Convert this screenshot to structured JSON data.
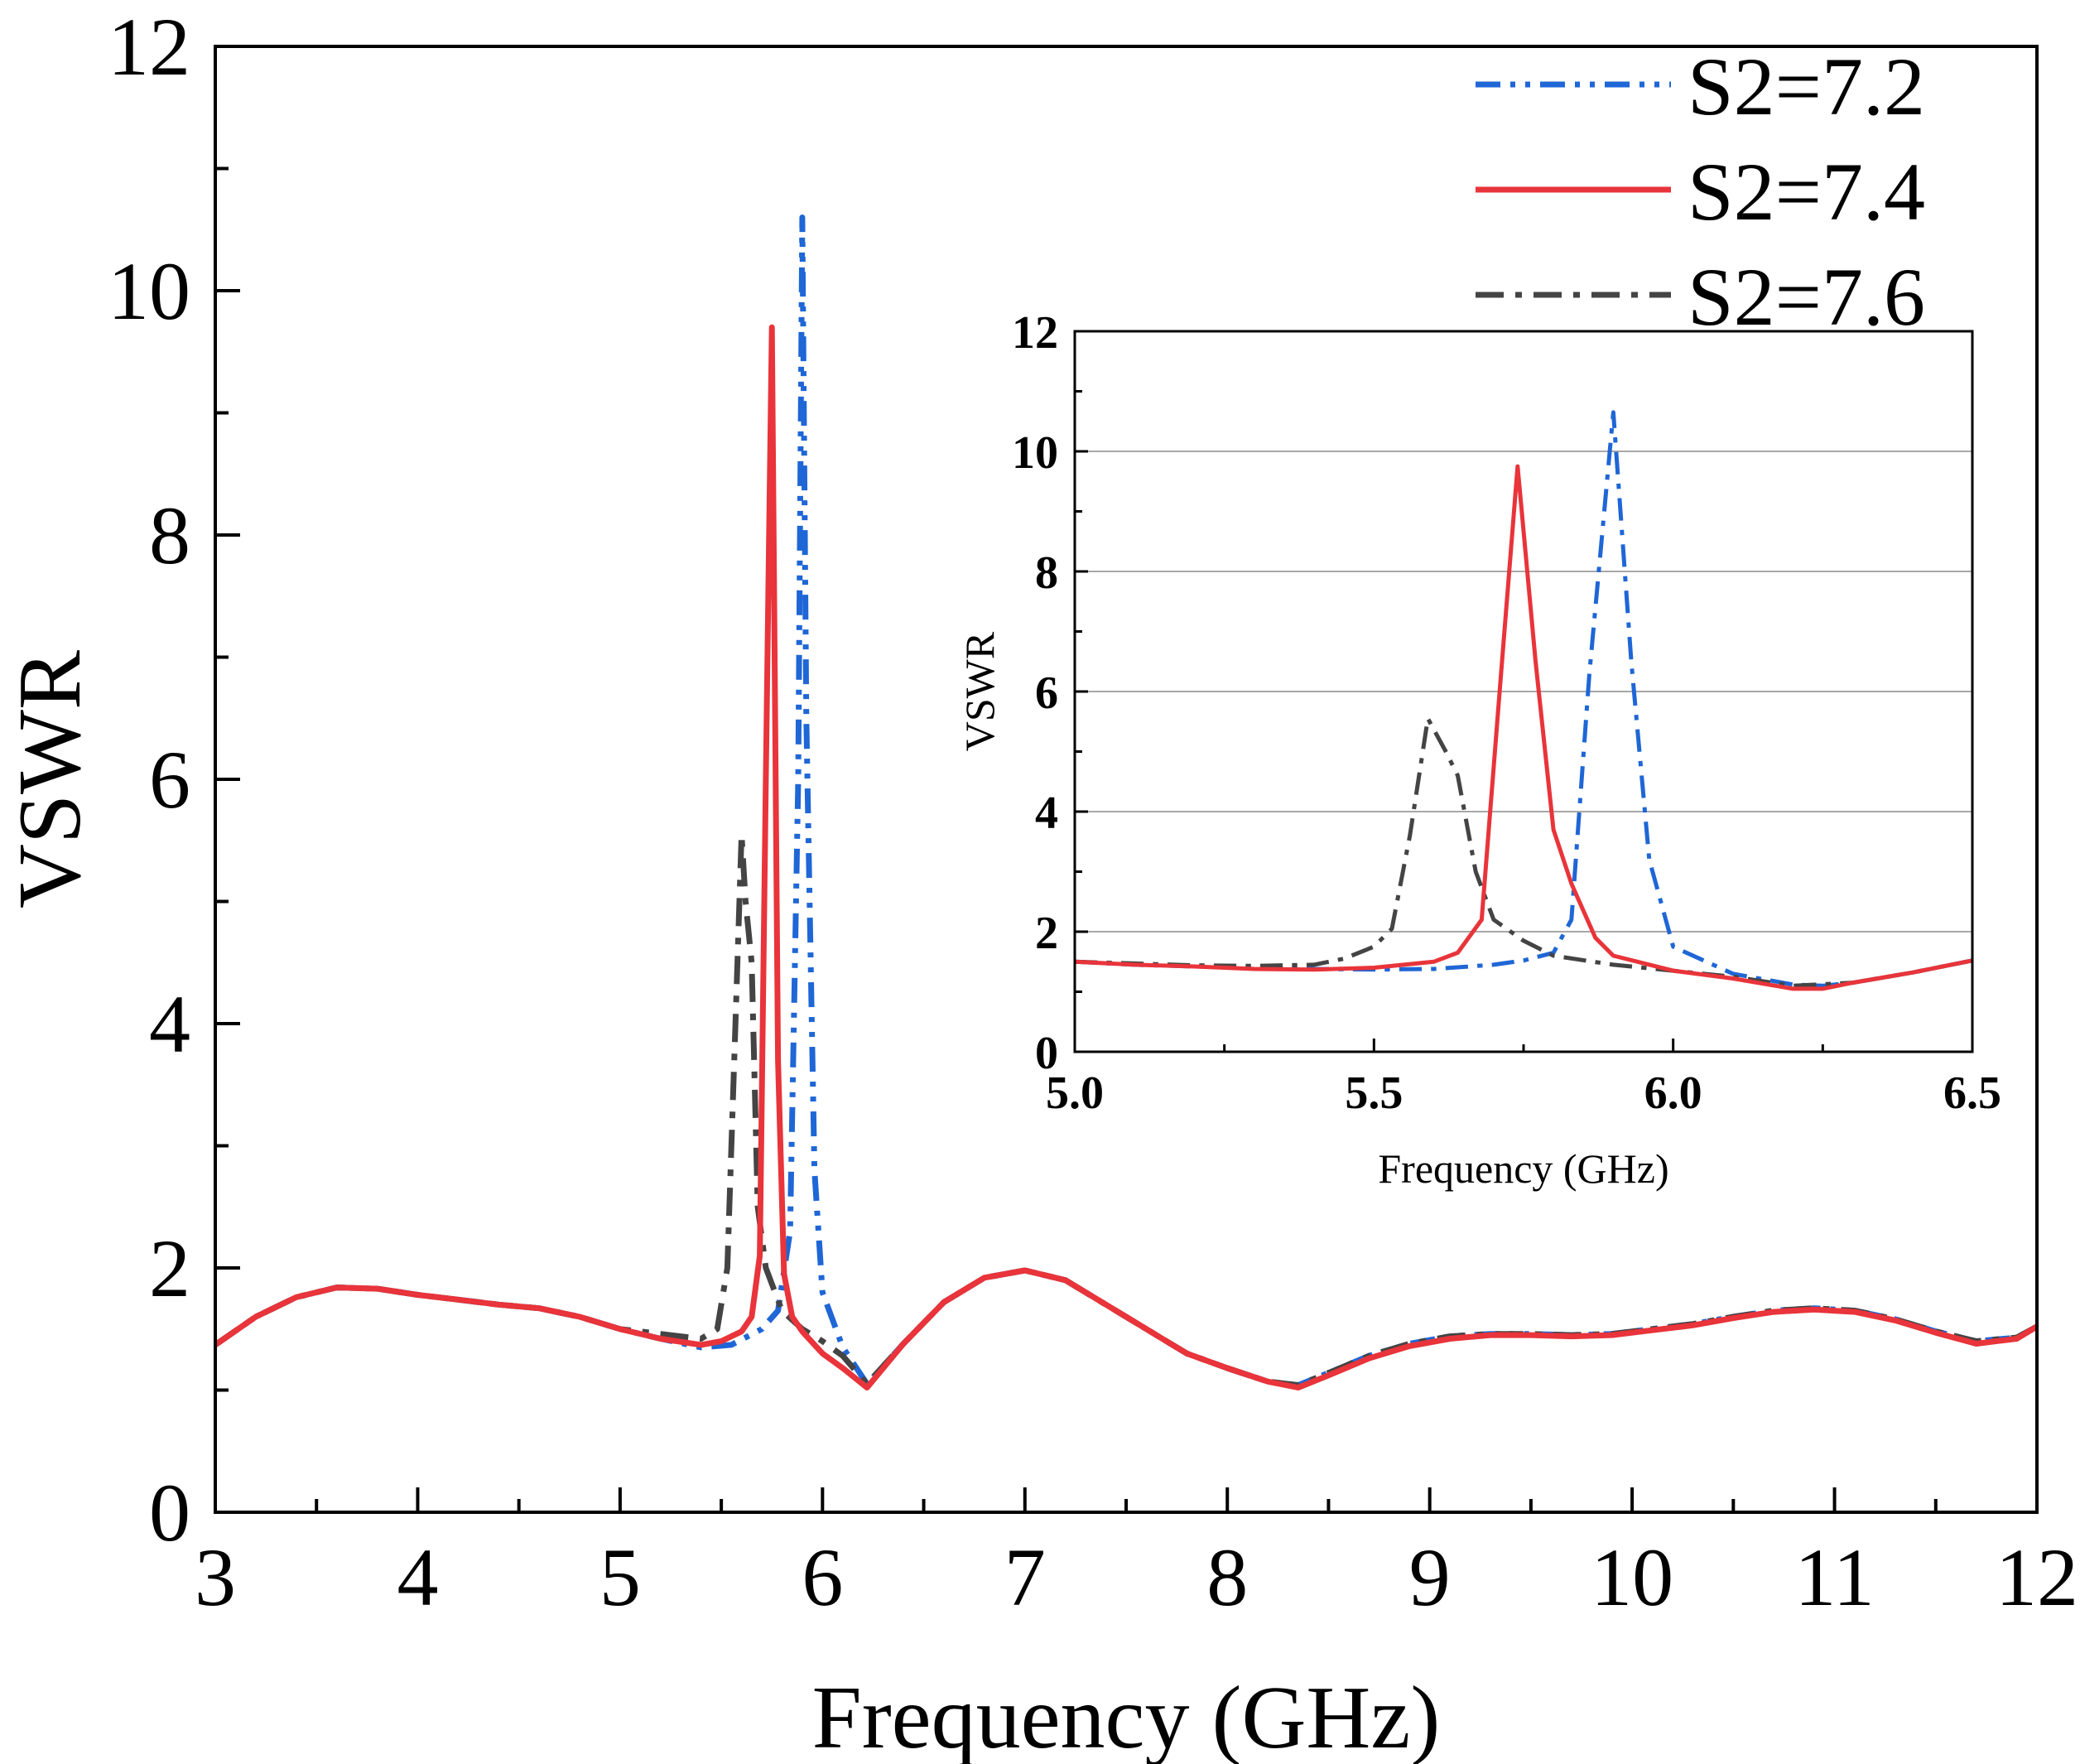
{
  "chart_data": [
    {
      "type": "line",
      "role": "main",
      "title": "",
      "xlabel": "Frequency (GHz)",
      "ylabel": "VSWR",
      "xlim": [
        3,
        12
      ],
      "ylim": [
        0,
        12
      ],
      "xticks": [
        "3",
        "4",
        "5",
        "6",
        "7",
        "8",
        "9",
        "10",
        "11",
        "12"
      ],
      "yticks": [
        "0",
        "2",
        "4",
        "6",
        "8",
        "10",
        "12"
      ],
      "grid": false,
      "legend_position": "top-right",
      "series": [
        {
          "name": "S2=7.2",
          "color": "#1f66d6",
          "dash": "dash-dot-dot",
          "x": [
            3.0,
            3.2,
            3.4,
            3.6,
            3.8,
            4.0,
            4.2,
            4.4,
            4.6,
            4.8,
            5.0,
            5.2,
            5.4,
            5.55,
            5.7,
            5.78,
            5.84,
            5.88,
            5.9,
            5.92,
            5.96,
            6.0,
            6.1,
            6.22,
            6.4,
            6.6,
            6.8,
            7.0,
            7.2,
            7.4,
            7.6,
            7.8,
            8.0,
            8.2,
            8.35,
            8.5,
            8.7,
            8.9,
            9.1,
            9.3,
            9.5,
            9.7,
            9.9,
            10.1,
            10.3,
            10.5,
            10.7,
            10.9,
            11.1,
            11.3,
            11.5,
            11.7,
            11.9,
            12.0
          ],
          "y": [
            1.37,
            1.6,
            1.76,
            1.84,
            1.83,
            1.78,
            1.74,
            1.7,
            1.67,
            1.6,
            1.5,
            1.42,
            1.35,
            1.37,
            1.5,
            1.65,
            2.3,
            6.0,
            10.6,
            6.5,
            2.8,
            1.8,
            1.35,
            1.05,
            1.38,
            1.72,
            1.92,
            1.98,
            1.9,
            1.7,
            1.5,
            1.3,
            1.18,
            1.07,
            1.04,
            1.14,
            1.28,
            1.38,
            1.44,
            1.46,
            1.46,
            1.45,
            1.46,
            1.5,
            1.54,
            1.6,
            1.65,
            1.67,
            1.65,
            1.58,
            1.48,
            1.4,
            1.43,
            1.52
          ]
        },
        {
          "name": "S2=7.4",
          "color": "#e8343a",
          "dash": "solid",
          "x": [
            3.0,
            3.2,
            3.4,
            3.6,
            3.8,
            4.0,
            4.2,
            4.4,
            4.6,
            4.8,
            5.0,
            5.2,
            5.4,
            5.5,
            5.6,
            5.65,
            5.69,
            5.72,
            5.75,
            5.78,
            5.81,
            5.85,
            5.9,
            6.0,
            6.1,
            6.22,
            6.4,
            6.6,
            6.8,
            7.0,
            7.2,
            7.4,
            7.6,
            7.8,
            8.0,
            8.2,
            8.35,
            8.5,
            8.7,
            8.9,
            9.1,
            9.3,
            9.5,
            9.7,
            9.9,
            10.1,
            10.3,
            10.5,
            10.7,
            10.9,
            11.1,
            11.3,
            11.5,
            11.7,
            11.9,
            12.0
          ],
          "y": [
            1.37,
            1.6,
            1.76,
            1.84,
            1.83,
            1.78,
            1.74,
            1.7,
            1.67,
            1.6,
            1.5,
            1.42,
            1.37,
            1.4,
            1.48,
            1.6,
            2.1,
            6.0,
            9.7,
            3.7,
            1.95,
            1.6,
            1.48,
            1.3,
            1.18,
            1.02,
            1.38,
            1.72,
            1.92,
            1.98,
            1.9,
            1.7,
            1.5,
            1.3,
            1.18,
            1.07,
            1.02,
            1.12,
            1.26,
            1.36,
            1.42,
            1.45,
            1.45,
            1.44,
            1.45,
            1.49,
            1.53,
            1.59,
            1.64,
            1.66,
            1.64,
            1.57,
            1.47,
            1.38,
            1.42,
            1.52
          ]
        },
        {
          "name": "S2=7.6",
          "color": "#444444",
          "dash": "dash-dot",
          "x": [
            3.0,
            3.2,
            3.4,
            3.6,
            3.8,
            4.0,
            4.2,
            4.4,
            4.6,
            4.8,
            5.0,
            5.2,
            5.4,
            5.48,
            5.53,
            5.57,
            5.6,
            5.62,
            5.65,
            5.68,
            5.72,
            5.8,
            5.9,
            6.0,
            6.1,
            6.22,
            6.4,
            6.6,
            6.8,
            7.0,
            7.2,
            7.4,
            7.6,
            7.8,
            8.0,
            8.2,
            8.35,
            8.5,
            8.7,
            8.9,
            9.1,
            9.3,
            9.5,
            9.7,
            9.9,
            10.1,
            10.3,
            10.5,
            10.7,
            10.9,
            11.1,
            11.3,
            11.5,
            11.7,
            11.9,
            12.0
          ],
          "y": [
            1.37,
            1.6,
            1.76,
            1.84,
            1.83,
            1.78,
            1.74,
            1.7,
            1.67,
            1.6,
            1.5,
            1.46,
            1.42,
            1.5,
            2.0,
            4.0,
            5.55,
            5.0,
            4.5,
            2.5,
            2.0,
            1.65,
            1.5,
            1.4,
            1.28,
            1.05,
            1.38,
            1.72,
            1.92,
            1.98,
            1.9,
            1.7,
            1.5,
            1.3,
            1.18,
            1.07,
            1.04,
            1.14,
            1.28,
            1.38,
            1.44,
            1.46,
            1.46,
            1.45,
            1.46,
            1.5,
            1.54,
            1.6,
            1.65,
            1.67,
            1.65,
            1.58,
            1.48,
            1.4,
            1.43,
            1.52
          ]
        }
      ]
    },
    {
      "type": "line",
      "role": "inset",
      "title": "",
      "xlabel": "Frequency (GHz)",
      "ylabel": "VSWR",
      "xlim": [
        5.0,
        6.5
      ],
      "ylim": [
        0,
        12
      ],
      "xticks": [
        "5.0",
        "5.5",
        "6.0",
        "6.5"
      ],
      "yticks": [
        "0",
        "2",
        "4",
        "6",
        "8",
        "10",
        "12"
      ],
      "grid": true,
      "legend_position": "none",
      "series": [
        {
          "name": "S2=7.2",
          "color": "#1f66d6",
          "dash": "dash-dot",
          "x": [
            5.0,
            5.1,
            5.2,
            5.3,
            5.4,
            5.5,
            5.6,
            5.7,
            5.75,
            5.8,
            5.83,
            5.86,
            5.9,
            5.93,
            5.96,
            6.0,
            6.1,
            6.2,
            6.25,
            6.3,
            6.4,
            6.5
          ],
          "y": [
            1.5,
            1.45,
            1.42,
            1.4,
            1.38,
            1.37,
            1.38,
            1.45,
            1.52,
            1.65,
            2.2,
            6.3,
            10.65,
            6.5,
            3.2,
            1.75,
            1.3,
            1.12,
            1.1,
            1.15,
            1.32,
            1.52
          ]
        },
        {
          "name": "S2=7.4",
          "color": "#e8343a",
          "dash": "solid",
          "x": [
            5.0,
            5.1,
            5.2,
            5.3,
            5.4,
            5.5,
            5.55,
            5.6,
            5.64,
            5.68,
            5.71,
            5.74,
            5.77,
            5.8,
            5.83,
            5.87,
            5.9,
            6.0,
            6.1,
            6.2,
            6.25,
            6.3,
            6.4,
            6.5
          ],
          "y": [
            1.5,
            1.45,
            1.42,
            1.38,
            1.37,
            1.4,
            1.45,
            1.5,
            1.65,
            2.2,
            6.0,
            9.75,
            6.5,
            3.7,
            2.8,
            1.9,
            1.6,
            1.35,
            1.22,
            1.05,
            1.05,
            1.15,
            1.32,
            1.52
          ]
        },
        {
          "name": "S2=7.6",
          "color": "#444444",
          "dash": "dash-dot",
          "x": [
            5.0,
            5.1,
            5.2,
            5.3,
            5.4,
            5.45,
            5.5,
            5.53,
            5.56,
            5.59,
            5.62,
            5.64,
            5.67,
            5.7,
            5.75,
            5.8,
            5.9,
            6.0,
            6.1,
            6.2,
            6.3,
            6.4,
            6.5
          ],
          "y": [
            1.5,
            1.47,
            1.44,
            1.43,
            1.45,
            1.55,
            1.75,
            2.05,
            3.6,
            5.55,
            5.0,
            4.6,
            3.0,
            2.2,
            1.85,
            1.6,
            1.45,
            1.35,
            1.25,
            1.1,
            1.15,
            1.32,
            1.52
          ]
        }
      ]
    }
  ]
}
